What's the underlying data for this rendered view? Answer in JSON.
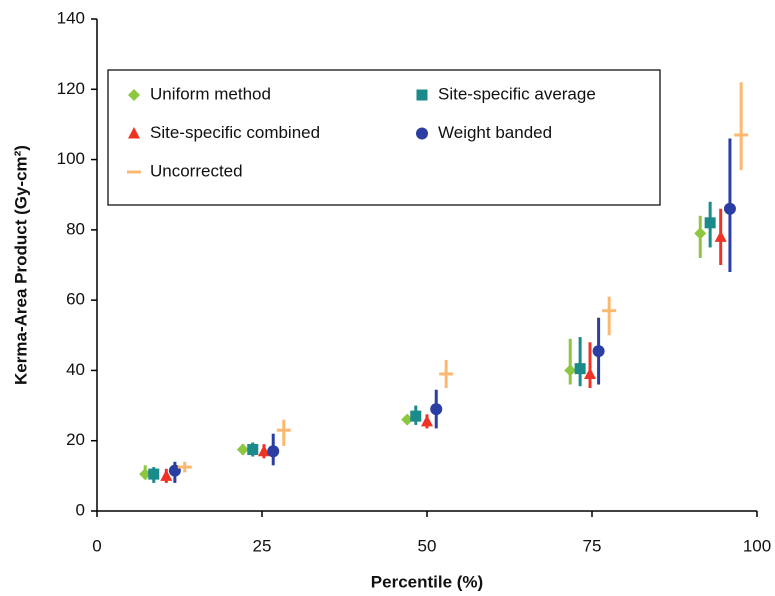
{
  "chart_data": {
    "type": "scatter",
    "x_label": "Percentile (%)",
    "y_label": "Kerma-Area Product (Gy-cm²)",
    "xlim": [
      0,
      100
    ],
    "xticks": [
      0,
      25,
      50,
      75,
      100
    ],
    "ylim": [
      0,
      140
    ],
    "yticks": [
      0,
      20,
      40,
      60,
      80,
      100,
      120,
      140
    ],
    "legend": "upper left",
    "series": [
      {
        "name": "Uniform method",
        "color": "#8dc63f",
        "marker": "diamond",
        "x": [
          7.3,
          22.1,
          47,
          71.7,
          91.4
        ],
        "values": [
          10.5,
          17.5,
          26,
          40,
          79
        ],
        "error_low": [
          9,
          16,
          25,
          36,
          72
        ],
        "error_high": [
          13,
          19,
          27,
          49,
          84
        ]
      },
      {
        "name": "Site-specific average",
        "color": "#1a8a8a",
        "marker": "square",
        "x": [
          8.6,
          23.6,
          48.3,
          73.2,
          92.9
        ],
        "values": [
          10.5,
          17.5,
          27,
          40.5,
          82
        ],
        "error_low": [
          8,
          15.5,
          24.5,
          35.5,
          75
        ],
        "error_high": [
          12.5,
          19.5,
          30,
          49.5,
          88
        ]
      },
      {
        "name": "Site-specific combined",
        "color": "#ee3324",
        "marker": "triangle",
        "x": [
          10.5,
          25.3,
          50,
          74.7,
          94.5
        ],
        "values": [
          10,
          17,
          25.5,
          39,
          78
        ],
        "error_low": [
          8,
          15,
          23.5,
          35,
          70
        ],
        "error_high": [
          12,
          19,
          27.5,
          48,
          86
        ]
      },
      {
        "name": "Weight banded",
        "color": "#2b3ea3",
        "marker": "circle",
        "x": [
          11.8,
          26.7,
          51.4,
          76,
          95.9
        ],
        "values": [
          11.5,
          17,
          29,
          45.5,
          86
        ],
        "error_low": [
          8,
          13,
          23.5,
          36,
          68
        ],
        "error_high": [
          14,
          22,
          34.5,
          55,
          106
        ]
      },
      {
        "name": "Uncorrected",
        "color": "#fbb870",
        "marker": "dash",
        "x": [
          13.3,
          28.3,
          52.9,
          77.6,
          97.6
        ],
        "values": [
          12.5,
          23,
          39,
          57,
          107
        ],
        "error_low": [
          11,
          18.5,
          35,
          50,
          97
        ],
        "error_high": [
          14,
          26,
          43,
          61,
          122
        ]
      }
    ]
  }
}
